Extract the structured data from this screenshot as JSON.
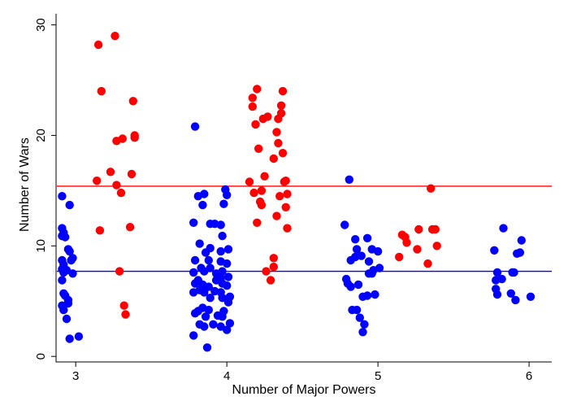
{
  "chart_data": {
    "type": "scatter",
    "title": "",
    "xlabel": "Number of Major Powers",
    "ylabel": "Number of Wars",
    "xlim": [
      2.87,
      6.15
    ],
    "ylim": [
      -0.5,
      31
    ],
    "xticks": [
      3,
      4,
      5,
      6
    ],
    "yticks": [
      0,
      10,
      20,
      30
    ],
    "grid": false,
    "legend": "none",
    "colors": {
      "blue": "#0000ff",
      "red": "#ff0000"
    },
    "reference_lines": [
      {
        "y": 15.4,
        "color": "#ff0000"
      },
      {
        "y": 7.7,
        "color": "#0000ff"
      }
    ],
    "series": [
      {
        "color": "#0000ff",
        "points": [
          [
            2.91,
            14.5
          ],
          [
            2.91,
            11.6
          ],
          [
            2.92,
            11.2
          ],
          [
            2.91,
            10.9
          ],
          [
            2.93,
            10.8
          ],
          [
            2.91,
            8.7
          ],
          [
            2.92,
            8.3
          ],
          [
            2.91,
            7.9
          ],
          [
            2.92,
            7.6
          ],
          [
            2.91,
            6.9
          ],
          [
            2.92,
            5.7
          ],
          [
            2.91,
            4.6
          ],
          [
            2.92,
            4.2
          ],
          [
            2.94,
            7.8
          ],
          [
            2.93,
            5.5
          ],
          [
            2.96,
            13.7
          ],
          [
            2.95,
            9.7
          ],
          [
            2.96,
            9.5
          ],
          [
            2.98,
            8.9
          ],
          [
            2.97,
            8.7
          ],
          [
            2.98,
            7.5
          ],
          [
            2.95,
            5.1
          ],
          [
            2.95,
            4.8
          ],
          [
            2.94,
            3.4
          ],
          [
            2.96,
            1.6
          ],
          [
            3.02,
            1.8
          ],
          [
            3.79,
            20.8
          ],
          [
            3.78,
            12.1
          ],
          [
            3.79,
            8.7
          ],
          [
            3.78,
            7.6
          ],
          [
            3.79,
            6.6
          ],
          [
            3.78,
            5.8
          ],
          [
            3.81,
            4.1
          ],
          [
            3.79,
            3.9
          ],
          [
            3.82,
            2.9
          ],
          [
            3.78,
            1.9
          ],
          [
            3.81,
            14.5
          ],
          [
            3.82,
            10.2
          ],
          [
            3.83,
            8.0
          ],
          [
            3.82,
            6.0
          ],
          [
            3.81,
            6.9
          ],
          [
            3.84,
            13.7
          ],
          [
            3.85,
            14.7
          ],
          [
            3.86,
            9.4
          ],
          [
            3.85,
            7.7
          ],
          [
            3.84,
            6.5
          ],
          [
            3.85,
            5.8
          ],
          [
            3.84,
            4.4
          ],
          [
            3.86,
            3.6
          ],
          [
            3.85,
            2.7
          ],
          [
            3.87,
            0.8
          ],
          [
            3.89,
            12.0
          ],
          [
            3.89,
            9.8
          ],
          [
            3.88,
            8.7
          ],
          [
            3.89,
            8.0
          ],
          [
            3.88,
            6.3
          ],
          [
            3.89,
            5.3
          ],
          [
            3.88,
            4.2
          ],
          [
            3.91,
            2.9
          ],
          [
            3.92,
            12.0
          ],
          [
            3.93,
            7.5
          ],
          [
            3.93,
            6.9
          ],
          [
            3.92,
            5.9
          ],
          [
            3.94,
            3.7
          ],
          [
            3.96,
            11.9
          ],
          [
            3.97,
            10.9
          ],
          [
            3.96,
            9.5
          ],
          [
            3.96,
            8.6
          ],
          [
            3.97,
            7.7
          ],
          [
            3.96,
            7.1
          ],
          [
            3.97,
            6.6
          ],
          [
            3.96,
            5.8
          ],
          [
            3.97,
            5.3
          ],
          [
            3.98,
            4.1
          ],
          [
            3.97,
            3.6
          ],
          [
            3.96,
            2.7
          ],
          [
            3.98,
            13.8
          ],
          [
            3.99,
            15.1
          ],
          [
            4.0,
            14.6
          ],
          [
            4.01,
            9.7
          ],
          [
            4.0,
            8.4
          ],
          [
            4.01,
            7.2
          ],
          [
            4.0,
            6.4
          ],
          [
            4.02,
            5.4
          ],
          [
            4.01,
            4.9
          ],
          [
            4.02,
            3.0
          ],
          [
            4.0,
            2.4
          ],
          [
            4.78,
            11.9
          ],
          [
            4.79,
            7.0
          ],
          [
            4.8,
            6.6
          ],
          [
            4.81,
            16.0
          ],
          [
            4.82,
            8.7
          ],
          [
            4.82,
            6.3
          ],
          [
            4.83,
            4.2
          ],
          [
            4.85,
            10.6
          ],
          [
            4.86,
            9.7
          ],
          [
            4.85,
            9.0
          ],
          [
            4.87,
            6.5
          ],
          [
            4.86,
            4.2
          ],
          [
            4.88,
            3.5
          ],
          [
            4.89,
            9.1
          ],
          [
            4.9,
            5.4
          ],
          [
            4.9,
            2.2
          ],
          [
            4.91,
            2.9
          ],
          [
            4.93,
            10.7
          ],
          [
            4.94,
            8.6
          ],
          [
            4.94,
            7.5
          ],
          [
            4.93,
            5.5
          ],
          [
            4.96,
            9.7
          ],
          [
            4.96,
            7.5
          ],
          [
            4.97,
            7.8
          ],
          [
            4.98,
            5.6
          ],
          [
            5.0,
            9.5
          ],
          [
            5.01,
            8.0
          ],
          [
            5.77,
            9.6
          ],
          [
            5.78,
            6.9
          ],
          [
            5.78,
            6.1
          ],
          [
            5.79,
            5.6
          ],
          [
            5.79,
            7.6
          ],
          [
            5.82,
            7.0
          ],
          [
            5.83,
            11.6
          ],
          [
            5.88,
            5.7
          ],
          [
            5.89,
            7.6
          ],
          [
            5.9,
            7.6
          ],
          [
            5.91,
            5.1
          ],
          [
            5.92,
            9.3
          ],
          [
            5.94,
            9.4
          ],
          [
            5.95,
            10.5
          ],
          [
            6.01,
            5.4
          ]
        ]
      },
      {
        "color": "#ff0000",
        "points": [
          [
            3.15,
            28.2
          ],
          [
            3.14,
            15.9
          ],
          [
            3.16,
            11.4
          ],
          [
            3.17,
            24.0
          ],
          [
            3.23,
            16.7
          ],
          [
            3.26,
            29.0
          ],
          [
            3.27,
            19.5
          ],
          [
            3.27,
            15.5
          ],
          [
            3.29,
            7.7
          ],
          [
            3.3,
            14.8
          ],
          [
            3.31,
            19.7
          ],
          [
            3.32,
            4.6
          ],
          [
            3.33,
            3.8
          ],
          [
            3.36,
            11.7
          ],
          [
            3.37,
            16.5
          ],
          [
            3.38,
            23.1
          ],
          [
            3.39,
            20.0
          ],
          [
            3.39,
            19.8
          ],
          [
            4.15,
            15.8
          ],
          [
            4.17,
            22.6
          ],
          [
            4.17,
            23.4
          ],
          [
            4.18,
            14.8
          ],
          [
            4.19,
            21.0
          ],
          [
            4.2,
            24.2
          ],
          [
            4.2,
            12.1
          ],
          [
            4.21,
            18.8
          ],
          [
            4.22,
            14.0
          ],
          [
            4.23,
            13.7
          ],
          [
            4.23,
            15.0
          ],
          [
            4.24,
            21.5
          ],
          [
            4.25,
            16.3
          ],
          [
            4.26,
            7.7
          ],
          [
            4.27,
            21.7
          ],
          [
            4.29,
            6.9
          ],
          [
            4.31,
            8.9
          ],
          [
            4.31,
            8.1
          ],
          [
            4.31,
            17.9
          ],
          [
            4.33,
            12.7
          ],
          [
            4.33,
            20.3
          ],
          [
            4.34,
            21.5
          ],
          [
            4.34,
            19.3
          ],
          [
            4.35,
            14.5
          ],
          [
            4.36,
            22.0
          ],
          [
            4.36,
            22.7
          ],
          [
            4.37,
            24.0
          ],
          [
            4.37,
            18.4
          ],
          [
            4.38,
            15.8
          ],
          [
            4.39,
            15.9
          ],
          [
            4.39,
            13.5
          ],
          [
            4.4,
            14.7
          ],
          [
            4.4,
            11.6
          ],
          [
            5.14,
            9.0
          ],
          [
            5.16,
            11.0
          ],
          [
            5.18,
            10.8
          ],
          [
            5.19,
            10.3
          ],
          [
            5.26,
            9.7
          ],
          [
            5.27,
            11.5
          ],
          [
            5.33,
            8.4
          ],
          [
            5.35,
            15.2
          ],
          [
            5.36,
            11.5
          ],
          [
            5.38,
            11.5
          ],
          [
            5.39,
            10.0
          ]
        ]
      }
    ]
  }
}
